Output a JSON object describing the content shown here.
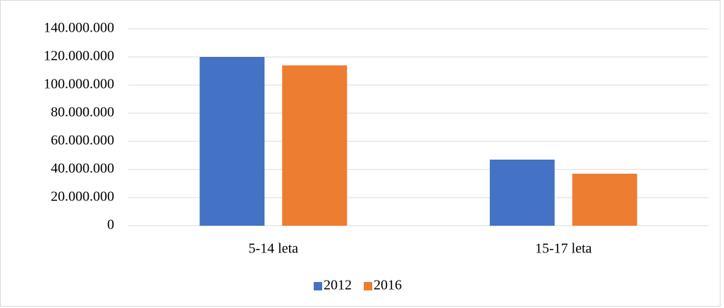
{
  "chart_data": {
    "type": "bar",
    "categories": [
      "5-14 leta",
      "15-17 leta"
    ],
    "series": [
      {
        "name": "2012",
        "color": "#4472c4",
        "values": [
          120000000,
          47000000
        ]
      },
      {
        "name": "2016",
        "color": "#ed7d31",
        "values": [
          114000000,
          37000000
        ]
      }
    ],
    "ylim": [
      0,
      140000000
    ],
    "yticks": [
      0,
      {
        "value": 20000000,
        "label": "20.000.000"
      },
      {
        "value": 40000000,
        "label": "40.000.000"
      },
      {
        "value": 60000000,
        "label": "60.000.000"
      },
      {
        "value": 80000000,
        "label": "80.000.000"
      },
      {
        "value": 100000000,
        "label": "100.000.000"
      },
      {
        "value": 120000000,
        "label": "120.000.000"
      },
      {
        "value": 140000000,
        "label": "140.000.000"
      }
    ],
    "grid": true,
    "legend": "bottom"
  }
}
